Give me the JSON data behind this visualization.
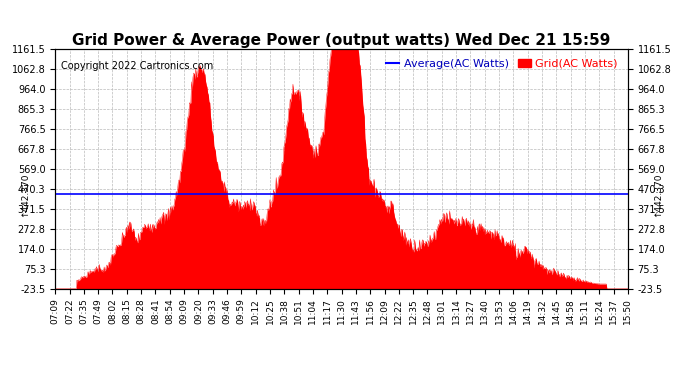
{
  "title": "Grid Power & Average Power (output watts) Wed Dec 21 15:59",
  "copyright": "Copyright 2022 Cartronics.com",
  "legend_average": "Average(AC Watts)",
  "legend_grid": "Grid(AC Watts)",
  "average_value": 442.37,
  "ymin": -23.5,
  "ymax": 1161.5,
  "yticks": [
    1161.5,
    1062.8,
    964.0,
    865.3,
    766.5,
    667.8,
    569.0,
    470.3,
    371.5,
    272.8,
    174.0,
    75.3,
    -23.5
  ],
  "xtick_labels": [
    "07:09",
    "07:22",
    "07:35",
    "07:49",
    "08:02",
    "08:15",
    "08:28",
    "08:41",
    "08:54",
    "09:09",
    "09:20",
    "09:33",
    "09:46",
    "09:59",
    "10:12",
    "10:25",
    "10:38",
    "10:51",
    "11:04",
    "11:17",
    "11:30",
    "11:43",
    "11:56",
    "12:09",
    "12:22",
    "12:35",
    "12:48",
    "13:01",
    "13:14",
    "13:27",
    "13:40",
    "13:53",
    "14:06",
    "14:19",
    "14:32",
    "14:45",
    "14:58",
    "15:11",
    "15:24",
    "15:37",
    "15:50"
  ],
  "fill_color": "#ff0000",
  "line_color": "#ff0000",
  "average_line_color": "#0000ff",
  "background_color": "#ffffff",
  "grid_color": "#bbbbbb",
  "title_color": "#000000",
  "title_fontsize": 11,
  "tick_fontsize": 7,
  "copyright_fontsize": 7,
  "legend_fontsize": 8,
  "avg_label_color": "#0000bb",
  "grid_label_color": "#ff0000",
  "avg_annotation": "↑442.370"
}
